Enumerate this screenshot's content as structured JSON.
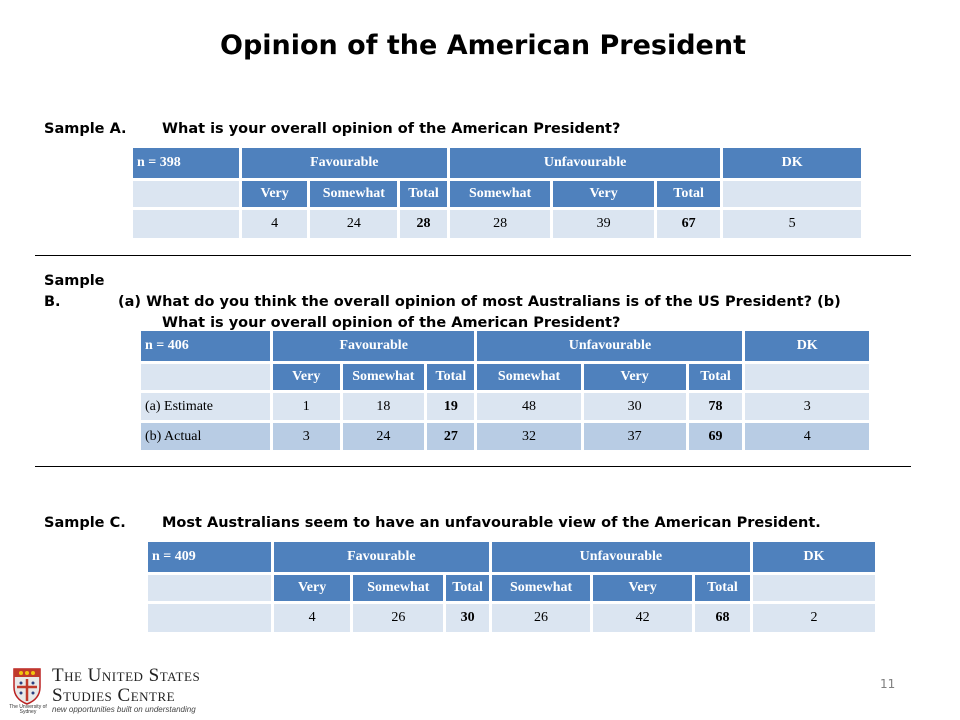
{
  "title": "Opinion of the American President",
  "sampleA": {
    "label": "Sample A.",
    "question": "What is your overall opinion of the American President?",
    "n": "n = 398",
    "group_favourable": "Favourable",
    "group_unfavourable": "Unfavourable",
    "group_dk": "DK",
    "subheaders": [
      "Very",
      "Somewhat",
      "Total",
      "Somewhat",
      "Very",
      "Total"
    ],
    "rows": [
      {
        "label": "",
        "values": [
          "4",
          "24",
          "28",
          "28",
          "39",
          "67",
          "5"
        ]
      }
    ]
  },
  "sampleB": {
    "label": "Sample B.",
    "question_line1": "(a) What do you think the overall opinion of most Australians is of the US President? (b)",
    "question_line2": "What is your overall opinion of the American President?",
    "n": "n = 406",
    "group_favourable": "Favourable",
    "group_unfavourable": "Unfavourable",
    "group_dk": "DK",
    "subheaders": [
      "Very",
      "Somewhat",
      "Total",
      "Somewhat",
      "Very",
      "Total"
    ],
    "rows": [
      {
        "label": "(a) Estimate",
        "values": [
          "1",
          "18",
          "19",
          "48",
          "30",
          "78",
          "3"
        ]
      },
      {
        "label": "(b) Actual",
        "values": [
          "3",
          "24",
          "27",
          "32",
          "37",
          "69",
          "4"
        ]
      }
    ]
  },
  "sampleC": {
    "label": "Sample C.",
    "question": "Most Australians seem to have an unfavourable view of the American President.",
    "n": "n = 409",
    "group_favourable": "Favourable",
    "group_unfavourable": "Unfavourable",
    "group_dk": "DK",
    "subheaders": [
      "Very",
      "Somewhat",
      "Total",
      "Somewhat",
      "Very",
      "Total"
    ],
    "rows": [
      {
        "label": "",
        "values": [
          "4",
          "26",
          "30",
          "26",
          "42",
          "68",
          "2"
        ]
      }
    ]
  },
  "footer": {
    "logo_line1": "The United States",
    "logo_line2": "Studies Centre",
    "logo_tagline": "new opportunities built on understanding",
    "crest_caption": "The University of Sydney",
    "page_number": "11"
  },
  "colors": {
    "header_blue": "#4f81bd",
    "row_light": "#dbe5f1",
    "row_mid": "#b8cce4"
  }
}
